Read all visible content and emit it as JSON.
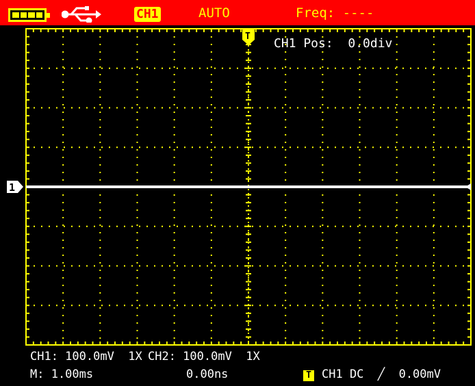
{
  "status_bar": {
    "background": "#ff0000",
    "battery_icon": "battery-full-icon",
    "usb_icon": "usb-icon",
    "channel_badge": "CH1",
    "trigger_mode": "AUTO",
    "frequency": "Freq: ----"
  },
  "display": {
    "grid_color": "#ffff00",
    "trace_color": "#ffffff",
    "ch1_marker": "1",
    "trigger_marker": "T",
    "position_readout": "CH1 Pos:  0.0div"
  },
  "bottom": {
    "ch1_scale": "CH1: 100.0mV  1X",
    "ch2_scale": "CH2: 100.0mV  1X",
    "timebase": "M: 1.00ms",
    "horizontal_delay": "0.00ns",
    "trigger_badge": "T",
    "trigger_settings": "CH1 DC  ╱  0.00mV"
  }
}
